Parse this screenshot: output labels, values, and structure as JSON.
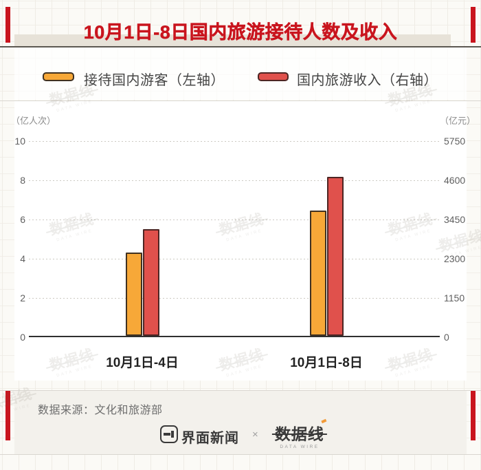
{
  "title": "10月1日-8日国内旅游接待人数及收入",
  "legend": {
    "items": [
      {
        "label": "接待国内游客（左轴）",
        "color": "#F7A838"
      },
      {
        "label": "国内旅游收入（右轴）",
        "color": "#E0514C"
      }
    ]
  },
  "chart_data": {
    "type": "bar",
    "title": "10月1日-8日国内旅游接待人数及收入",
    "categories": [
      "10月1日-4日",
      "10月1日-8日"
    ],
    "series": [
      {
        "name": "接待国内游客（左轴）",
        "axis": "left",
        "values": [
          4.26,
          6.37
        ],
        "color": "#F7A838",
        "border": "#403121"
      },
      {
        "name": "国内旅游收入（右轴）",
        "axis": "right",
        "values": [
          3120.2,
          4665.6
        ],
        "color": "#E0514C",
        "border": "#4d2523"
      }
    ],
    "left_axis": {
      "unit": "（亿人次）",
      "ticks": [
        "0",
        "2",
        "4",
        "6",
        "8",
        "10"
      ],
      "min": 0,
      "max": 10
    },
    "right_axis": {
      "unit": "（亿元）",
      "ticks": [
        "0",
        "1150",
        "2300",
        "3450",
        "4600",
        "5750"
      ],
      "min": 0,
      "max": 5750
    },
    "grid": "horizontal dashed",
    "legend_position": "top"
  },
  "watermark": {
    "text": "数据线",
    "subtext": "DATA WIRE"
  },
  "footer": {
    "source_note": "数据来源：文化和旅游部",
    "brand_left": "界面新闻",
    "separator": "×",
    "brand_right": "数据线",
    "brand_right_sub": "DATA WIRE"
  },
  "colors": {
    "title_red": "#c9151e",
    "accent_bar_red": "#c9151e",
    "bar_yellow": "#F7A838",
    "bar_red": "#E0514C",
    "footer_band": "#f3f1ec",
    "title_band": "#e7e2d8"
  }
}
